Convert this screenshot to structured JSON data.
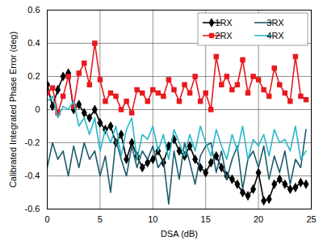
{
  "chart_data": {
    "type": "line",
    "x_label": "DSA (dB)",
    "y_label": "Calibrated Integrated Phase Error (deg)",
    "x": [
      0,
      0.5,
      1,
      1.5,
      2,
      2.5,
      3,
      3.5,
      4,
      4.5,
      5,
      5.5,
      6,
      6.5,
      7,
      7.5,
      8,
      8.5,
      9,
      9.5,
      10,
      10.5,
      11,
      11.5,
      12,
      12.5,
      13,
      13.5,
      14,
      14.5,
      15,
      15.5,
      16,
      16.5,
      17,
      17.5,
      18,
      18.5,
      19,
      19.5,
      20,
      20.5,
      21,
      21.5,
      22,
      22.5,
      23,
      23.5,
      24,
      24.5
    ],
    "series": [
      {
        "name": "1RX",
        "color": "#000000",
        "marker": "diamond",
        "values": [
          0.15,
          0.02,
          0.12,
          0.2,
          0.22,
          0.0,
          0.03,
          -0.02,
          -0.05,
          0.0,
          -0.08,
          -0.12,
          -0.1,
          -0.2,
          -0.15,
          -0.3,
          -0.2,
          -0.28,
          -0.35,
          -0.32,
          -0.3,
          -0.25,
          -0.32,
          -0.22,
          -0.18,
          -0.25,
          -0.28,
          -0.22,
          -0.3,
          -0.35,
          -0.38,
          -0.32,
          -0.28,
          -0.35,
          -0.4,
          -0.42,
          -0.45,
          -0.5,
          -0.52,
          -0.48,
          -0.38,
          -0.55,
          -0.54,
          -0.45,
          -0.42,
          -0.45,
          -0.48,
          -0.47,
          -0.44,
          -0.45
        ]
      },
      {
        "name": "2RX",
        "color": "#e8191e",
        "marker": "square",
        "values": [
          0.1,
          0.13,
          -0.02,
          0.08,
          0.2,
          0.02,
          0.22,
          0.28,
          0.15,
          0.4,
          0.18,
          0.05,
          0.1,
          0.08,
          0.0,
          0.05,
          -0.02,
          0.12,
          0.1,
          0.05,
          0.12,
          0.1,
          0.08,
          0.18,
          0.12,
          0.05,
          0.15,
          0.1,
          0.2,
          0.05,
          0.1,
          0.0,
          0.32,
          0.15,
          0.2,
          0.12,
          0.15,
          0.3,
          0.1,
          0.2,
          0.18,
          0.12,
          0.08,
          0.25,
          0.15,
          0.1,
          0.05,
          0.32,
          0.08,
          0.06
        ]
      },
      {
        "name": "3RX",
        "color": "#1d5c6e",
        "marker": "none",
        "values": [
          -0.35,
          -0.2,
          -0.3,
          -0.25,
          -0.4,
          -0.22,
          -0.35,
          -0.2,
          -0.3,
          -0.25,
          -0.4,
          -0.28,
          -0.5,
          -0.18,
          -0.3,
          -0.4,
          -0.22,
          -0.35,
          -0.25,
          -0.3,
          -0.22,
          -0.35,
          -0.3,
          -0.57,
          -0.25,
          -0.42,
          -0.2,
          -0.32,
          -0.45,
          -0.28,
          -0.22,
          -0.2,
          -0.38,
          -0.25,
          -0.42,
          -0.3,
          -0.22,
          -0.48,
          -0.3,
          -0.25,
          -0.35,
          -0.22,
          -0.42,
          -0.28,
          -0.38,
          -0.25,
          -0.45,
          -0.3,
          -0.35,
          -0.12
        ]
      },
      {
        "name": "4RX",
        "color": "#2bb8cc",
        "marker": "none",
        "values": [
          0.05,
          0.08,
          -0.05,
          0.02,
          0.0,
          0.05,
          -0.1,
          -0.05,
          -0.15,
          -0.05,
          -0.25,
          -0.12,
          -0.2,
          -0.1,
          -0.28,
          -0.12,
          -0.05,
          -0.3,
          -0.15,
          -0.18,
          -0.1,
          -0.25,
          -0.15,
          -0.3,
          -0.12,
          -0.2,
          -0.28,
          -0.15,
          -0.25,
          -0.1,
          -0.2,
          -0.28,
          -0.12,
          -0.22,
          -0.3,
          -0.15,
          -0.25,
          -0.1,
          -0.3,
          -0.18,
          -0.22,
          -0.15,
          -0.28,
          -0.12,
          -0.2,
          -0.18,
          -0.25,
          -0.1,
          -0.3,
          -0.25
        ]
      }
    ],
    "xlim": [
      0,
      25
    ],
    "xticks": [
      0,
      5,
      10,
      15,
      20,
      25
    ],
    "ylim": [
      -0.6,
      0.6
    ],
    "yticks": [
      -0.6,
      -0.4,
      -0.2,
      0,
      0.2,
      0.4,
      0.6
    ],
    "grid": true,
    "legend": "top-right"
  }
}
